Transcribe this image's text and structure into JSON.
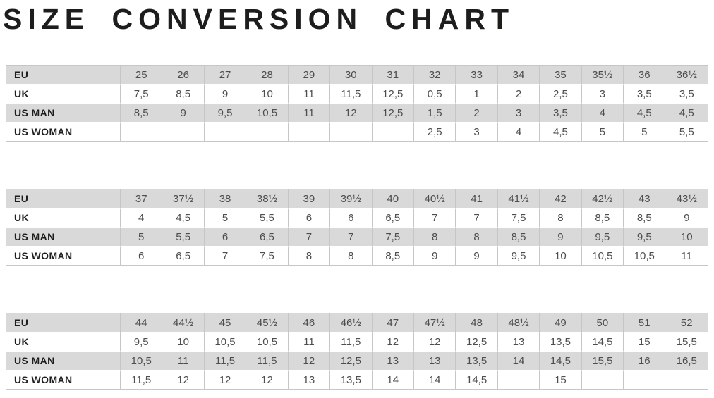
{
  "title": "SIZE CONVERSION CHART",
  "colors": {
    "background": "#ffffff",
    "title_text": "#1d1d1b",
    "label_text": "#1d1d1b",
    "value_text": "#4d4d4d",
    "row_shaded": "#d9d9d9",
    "row_plain": "#ffffff",
    "cell_border": "#c6c6c6"
  },
  "chart_data": {
    "type": "table",
    "title": "SIZE CONVERSION CHART",
    "row_keys": [
      {
        "key": "eu",
        "label": "EU"
      },
      {
        "key": "uk",
        "label": "UK"
      },
      {
        "key": "us_man",
        "label": "US MAN"
      },
      {
        "key": "us_woman",
        "label": "US WOMAN"
      }
    ],
    "tables": [
      {
        "eu": [
          "25",
          "26",
          "27",
          "28",
          "29",
          "30",
          "31",
          "32",
          "33",
          "34",
          "35",
          "35½",
          "36",
          "36½"
        ],
        "uk": [
          "7,5",
          "8,5",
          "9",
          "10",
          "11",
          "11,5",
          "12,5",
          "0,5",
          "1",
          "2",
          "2,5",
          "3",
          "3,5",
          "3,5"
        ],
        "us_man": [
          "8,5",
          "9",
          "9,5",
          "10,5",
          "11",
          "12",
          "12,5",
          "1,5",
          "2",
          "3",
          "3,5",
          "4",
          "4,5",
          "4,5"
        ],
        "us_woman": [
          "",
          "",
          "",
          "",
          "",
          "",
          "",
          "2,5",
          "3",
          "4",
          "4,5",
          "5",
          "5",
          "5,5"
        ]
      },
      {
        "eu": [
          "37",
          "37½",
          "38",
          "38½",
          "39",
          "39½",
          "40",
          "40½",
          "41",
          "41½",
          "42",
          "42½",
          "43",
          "43½"
        ],
        "uk": [
          "4",
          "4,5",
          "5",
          "5,5",
          "6",
          "6",
          "6,5",
          "7",
          "7",
          "7,5",
          "8",
          "8,5",
          "8,5",
          "9"
        ],
        "us_man": [
          "5",
          "5,5",
          "6",
          "6,5",
          "7",
          "7",
          "7,5",
          "8",
          "8",
          "8,5",
          "9",
          "9,5",
          "9,5",
          "10"
        ],
        "us_woman": [
          "6",
          "6,5",
          "7",
          "7,5",
          "8",
          "8",
          "8,5",
          "9",
          "9",
          "9,5",
          "10",
          "10,5",
          "10,5",
          "11"
        ]
      },
      {
        "eu": [
          "44",
          "44½",
          "45",
          "45½",
          "46",
          "46½",
          "47",
          "47½",
          "48",
          "48½",
          "49",
          "50",
          "51",
          "52"
        ],
        "uk": [
          "9,5",
          "10",
          "10,5",
          "10,5",
          "11",
          "11,5",
          "12",
          "12",
          "12,5",
          "13",
          "13,5",
          "14,5",
          "15",
          "15,5"
        ],
        "us_man": [
          "10,5",
          "11",
          "11,5",
          "11,5",
          "12",
          "12,5",
          "13",
          "13",
          "13,5",
          "14",
          "14,5",
          "15,5",
          "16",
          "16,5"
        ],
        "us_woman": [
          "11,5",
          "12",
          "12",
          "12",
          "13",
          "13,5",
          "14",
          "14",
          "14,5",
          "",
          "15",
          "",
          "",
          ""
        ]
      }
    ]
  }
}
